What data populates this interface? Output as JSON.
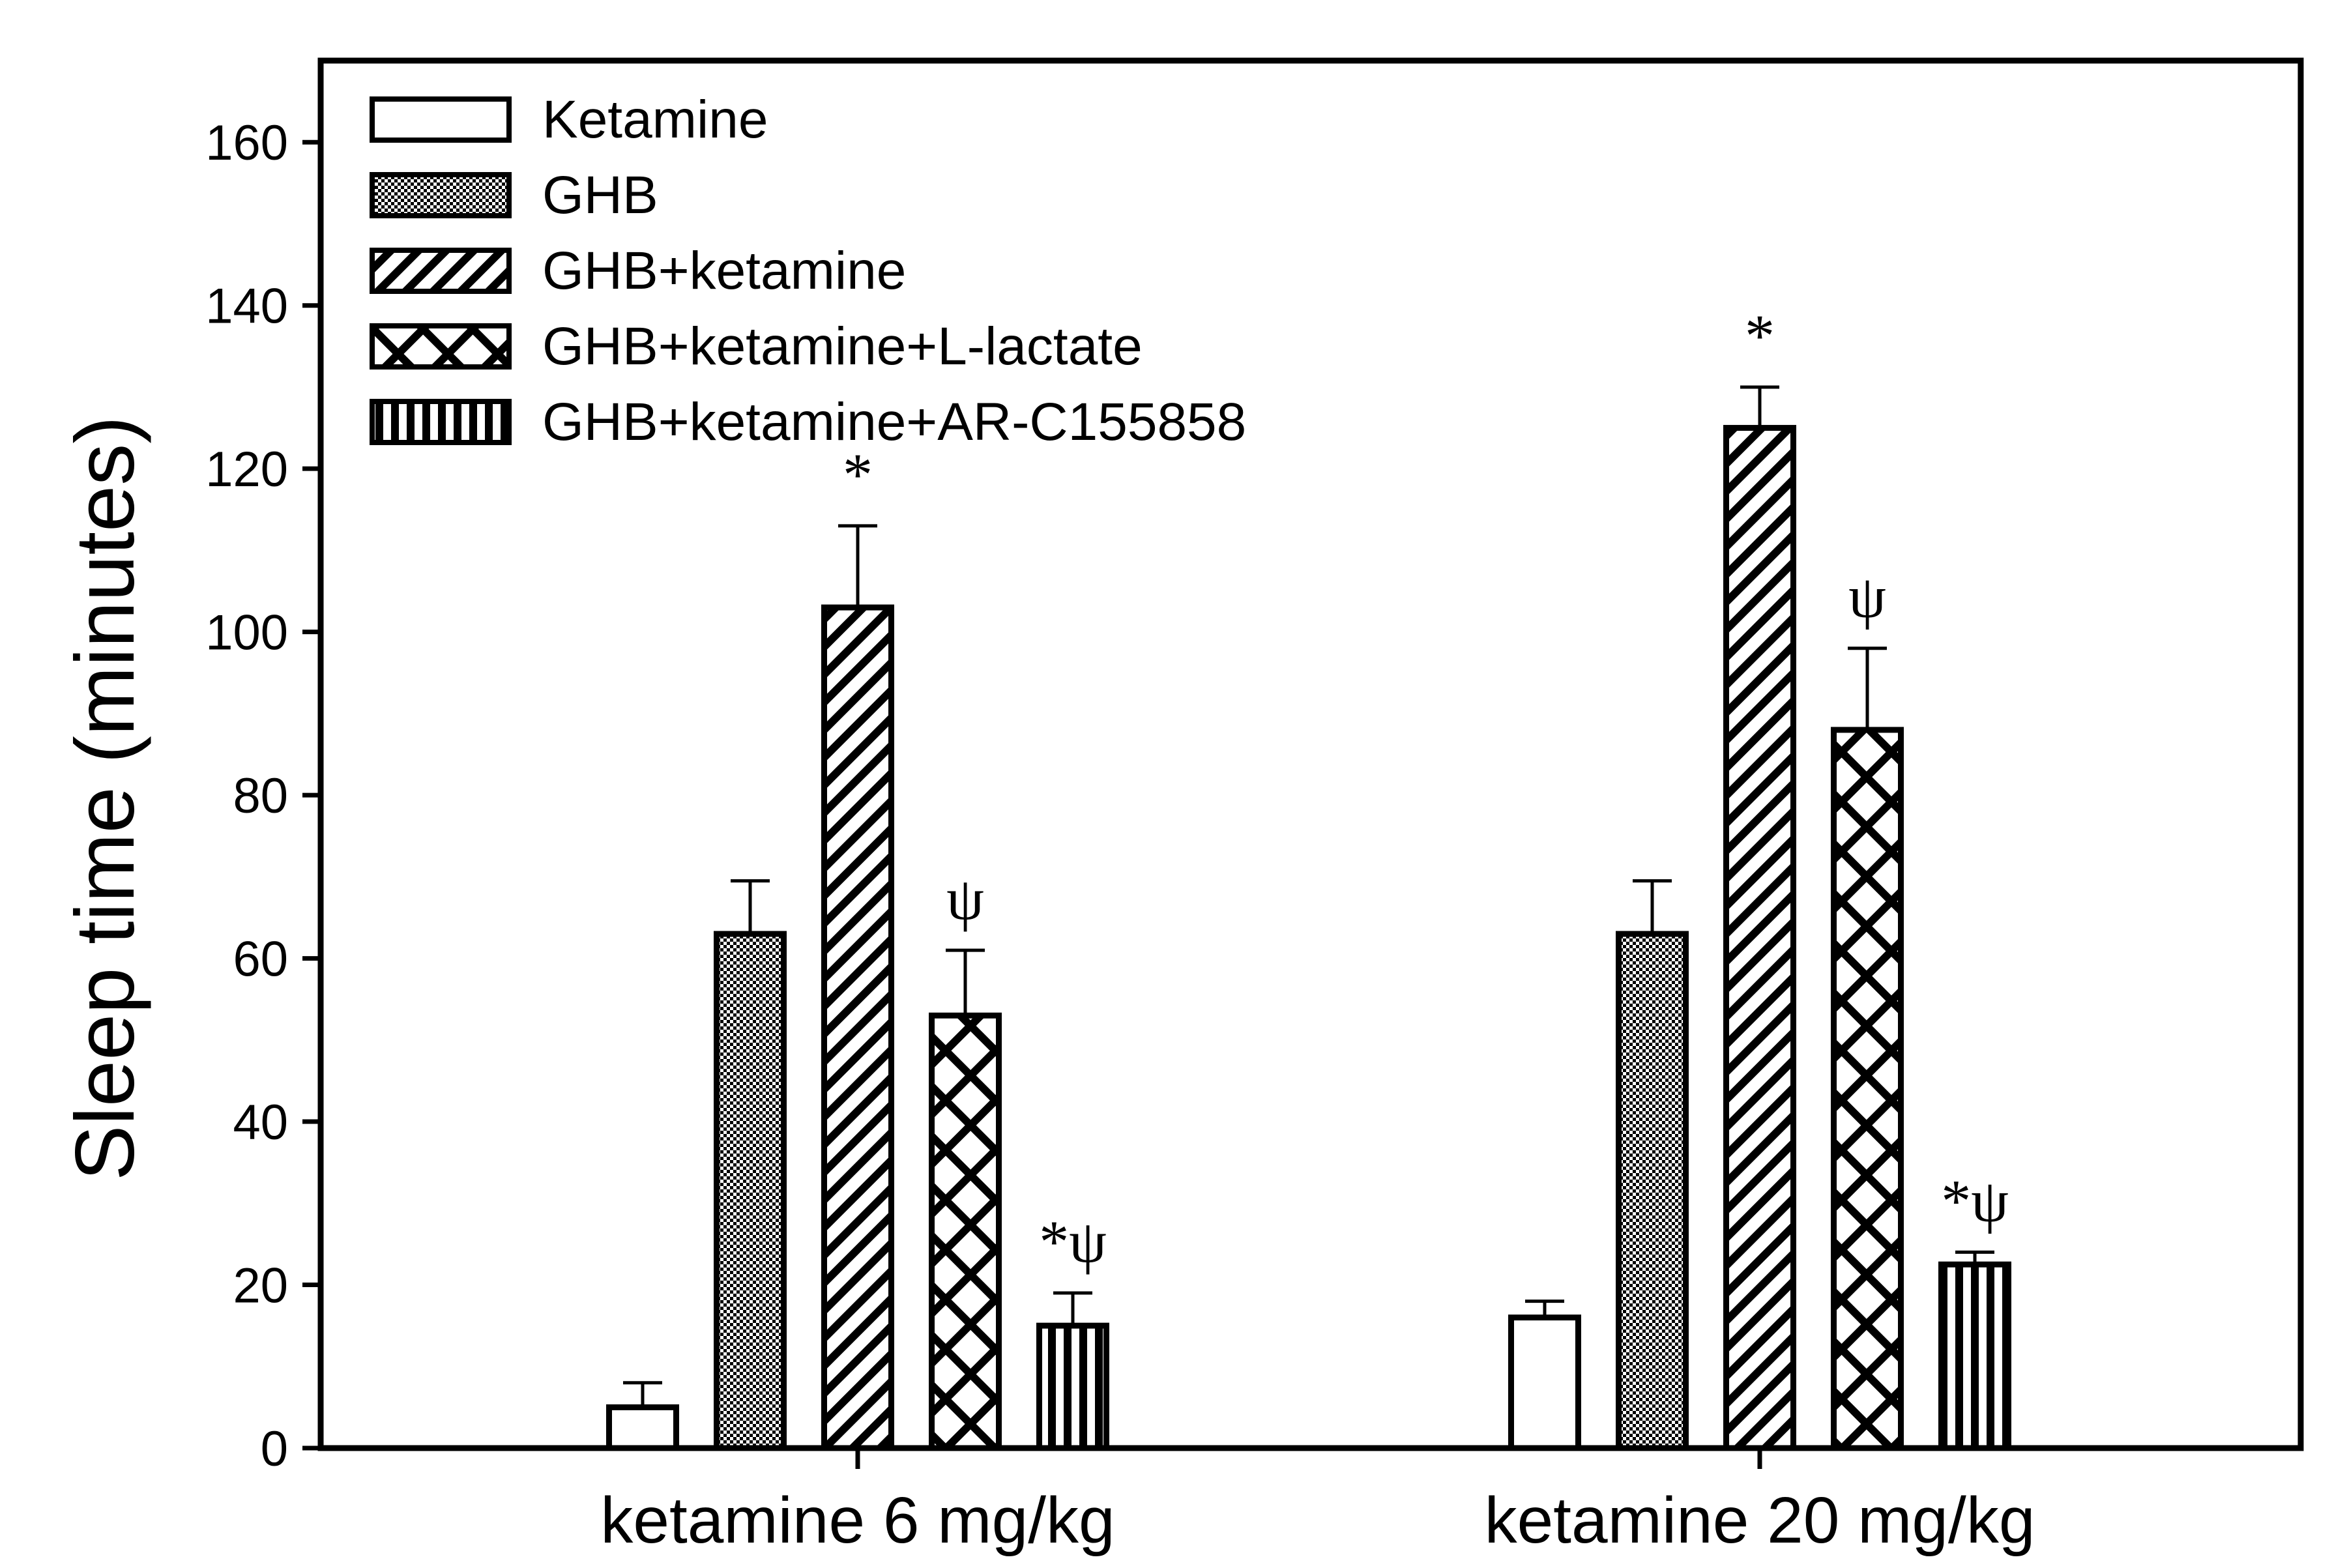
{
  "chart_data": {
    "type": "bar",
    "title": "",
    "xlabel": "",
    "ylabel": "Sleep time (minutes)",
    "ylim": [
      0,
      170
    ],
    "yticks": [
      0,
      20,
      40,
      60,
      80,
      100,
      120,
      140,
      160
    ],
    "ytick_labels": [
      "0",
      "20",
      "40",
      "60",
      "80",
      "100",
      "120",
      "140",
      "160"
    ],
    "grid": false,
    "legend_position": "top-left",
    "categories": [
      "ketamine 6 mg/kg",
      "ketamine 20 mg/kg"
    ],
    "series": [
      {
        "name": "Ketamine",
        "pattern": "open",
        "values": [
          5,
          16
        ],
        "errors": [
          3,
          2
        ],
        "annotations": [
          "",
          ""
        ]
      },
      {
        "name": "GHB",
        "pattern": "dense-dots",
        "values": [
          63,
          63
        ],
        "errors": [
          6.5,
          6.5
        ],
        "annotations": [
          "",
          ""
        ]
      },
      {
        "name": "GHB+ketamine",
        "pattern": "diagonal",
        "values": [
          103,
          125
        ],
        "errors": [
          10,
          5
        ],
        "annotations": [
          "*",
          "*"
        ]
      },
      {
        "name": "GHB+ketamine+L-lactate",
        "pattern": "crosshatch",
        "values": [
          53,
          88
        ],
        "errors": [
          8,
          10
        ],
        "annotations": [
          "ψ",
          "ψ"
        ]
      },
      {
        "name": "GHB+ketamine+AR-C155858",
        "pattern": "vertical",
        "values": [
          15,
          22.5
        ],
        "errors": [
          4,
          1.5
        ],
        "annotations": [
          "*ψ",
          "*ψ"
        ]
      }
    ]
  },
  "colors": {
    "ink": "#000000",
    "background": "#ffffff"
  }
}
